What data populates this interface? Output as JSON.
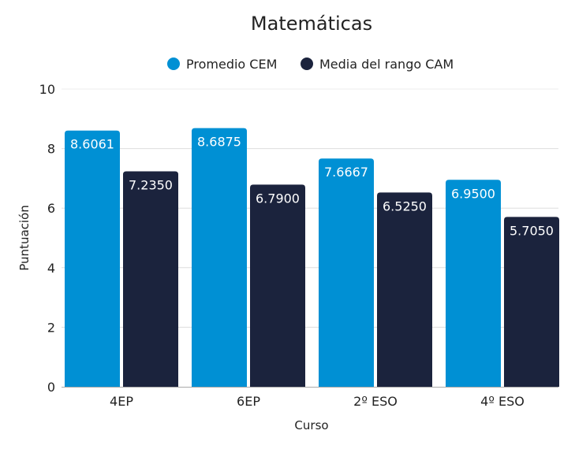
{
  "chart_data": {
    "type": "bar",
    "title": "Matemáticas",
    "xlabel": "Curso",
    "ylabel": "Puntuación",
    "ylim": [
      0,
      10
    ],
    "yticks": [
      0,
      2,
      4,
      6,
      8,
      10
    ],
    "grid": true,
    "legend_position": "top",
    "categories": [
      "4EP",
      "6EP",
      "2º ESO",
      "4º ESO"
    ],
    "series": [
      {
        "name": "Promedio CEM",
        "color": "#0090d4",
        "values": [
          8.6061,
          8.6875,
          7.6667,
          6.95
        ],
        "labels": [
          "8.6061",
          "8.6875",
          "7.6667",
          "6.9500"
        ]
      },
      {
        "name": "Media del rango CAM",
        "color": "#1b233d",
        "values": [
          7.235,
          6.79,
          6.525,
          5.705
        ],
        "labels": [
          "7.2350",
          "6.7900",
          "6.5250",
          "5.7050"
        ]
      }
    ]
  }
}
